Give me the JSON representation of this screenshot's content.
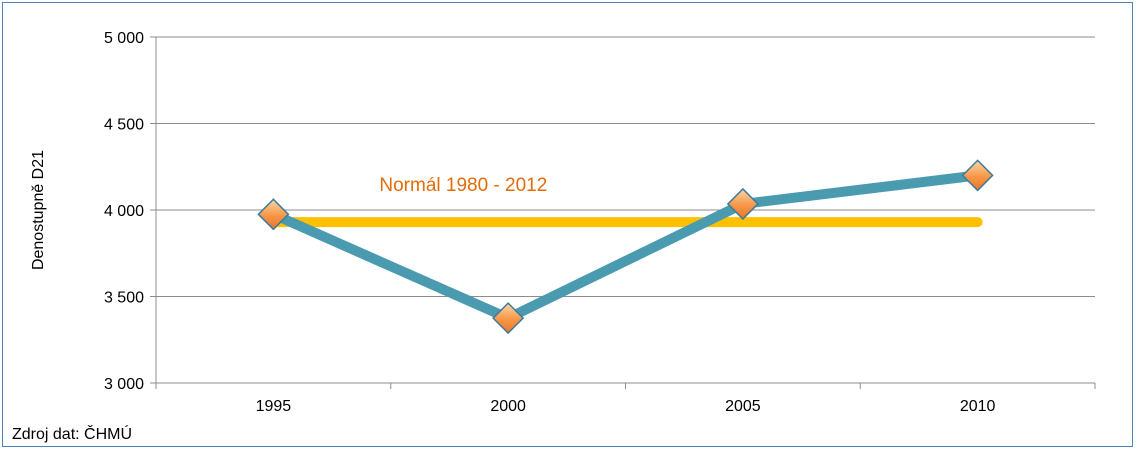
{
  "chart_data": {
    "type": "line",
    "x": [
      1995,
      2000,
      2005,
      2010
    ],
    "categories": [
      "1995",
      "2000",
      "2005",
      "2010"
    ],
    "ylabel": "Denostupně D21",
    "ylim": [
      3000,
      5000
    ],
    "yticks": [
      3000,
      3500,
      4000,
      4500,
      5000
    ],
    "ytick_labels": [
      "3 000",
      "3 500",
      "4 000",
      "4 500",
      "5 000"
    ],
    "grid": true,
    "series": [
      {
        "values": [
          3975,
          3375,
          4035,
          4200
        ],
        "color": "#4a9bb0",
        "marker": "diamond",
        "marker_color": "#f79646"
      }
    ],
    "reference_line": {
      "label": "Normál  1980 - 2012",
      "value": 3930,
      "x_range": [
        1995,
        2010
      ],
      "color": "#ffc000",
      "label_color": "#e36c09"
    }
  },
  "source_note": "Zdroj dat: ČHMÚ"
}
